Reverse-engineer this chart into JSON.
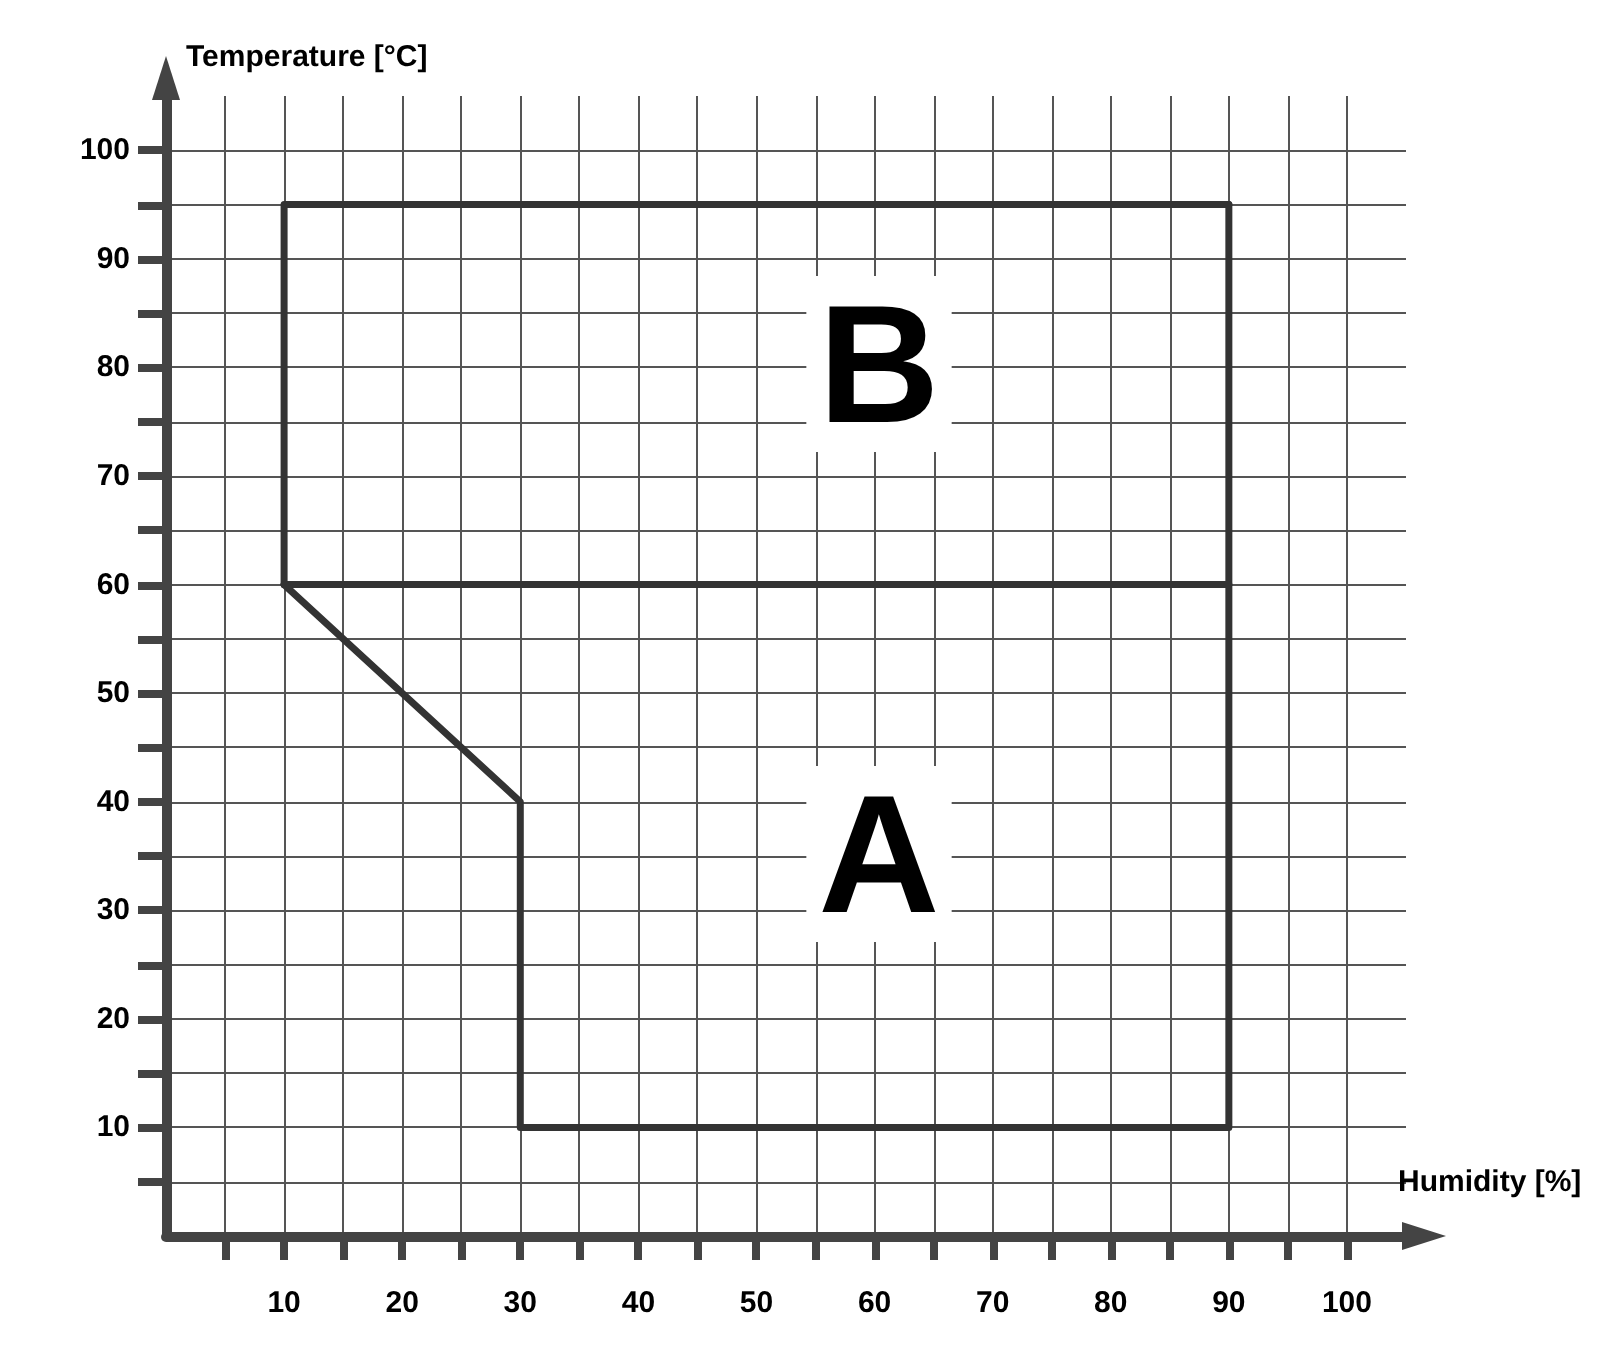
{
  "chart_data": {
    "type": "line",
    "xlabel": "Humidity [%]",
    "ylabel": "Temperature [°C]",
    "xlim": [
      0,
      105
    ],
    "ylim": [
      0,
      105
    ],
    "xticks": [
      {
        "value": 5,
        "label": null
      },
      10,
      {
        "value": 15,
        "label": null
      },
      20,
      {
        "value": 25,
        "label": null
      },
      30,
      {
        "value": 35,
        "label": null
      },
      40,
      {
        "value": 45,
        "label": null
      },
      50,
      {
        "value": 55,
        "label": null
      },
      60,
      {
        "value": 65,
        "label": null
      },
      70,
      {
        "value": 75,
        "label": null
      },
      80,
      {
        "value": 85,
        "label": null
      },
      90,
      {
        "value": 95,
        "label": null
      },
      100
    ],
    "yticks": [
      {
        "value": 5,
        "label": null
      },
      10,
      {
        "value": 15,
        "label": null
      },
      20,
      {
        "value": 25,
        "label": null
      },
      30,
      {
        "value": 35,
        "label": null
      },
      40,
      {
        "value": 45,
        "label": null
      },
      50,
      {
        "value": 55,
        "label": null
      },
      60,
      {
        "value": 65,
        "label": null
      },
      70,
      {
        "value": 75,
        "label": null
      },
      80,
      {
        "value": 85,
        "label": null
      },
      90,
      {
        "value": 95,
        "label": null
      },
      100
    ],
    "series": [
      {
        "color": "#333333",
        "x": [
          10,
          30,
          30,
          90,
          90
        ],
        "values": [
          60,
          40,
          10,
          10,
          95
        ]
      },
      {
        "color": "#333333",
        "x": [
          10,
          10,
          90
        ],
        "values": [
          60,
          95,
          95
        ]
      },
      {
        "color": "#333333",
        "x": [
          10,
          90
        ],
        "values": [
          60,
          60
        ]
      }
    ],
    "marker": "none",
    "line_style": "solid",
    "grid": true,
    "annotations": [
      "A",
      "B"
    ]
  }
}
